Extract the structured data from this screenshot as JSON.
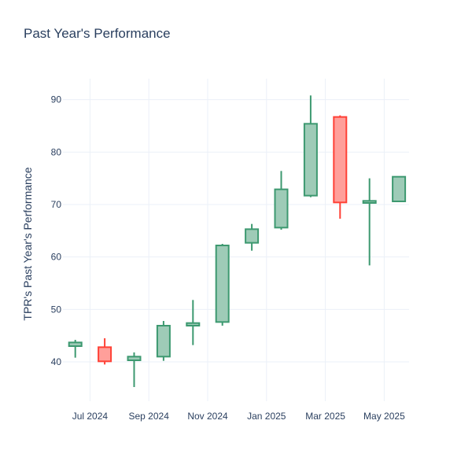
{
  "chart_data": {
    "type": "candlestick",
    "title": "Past Year's Performance",
    "xlabel": "",
    "ylabel": "TPR's Past Year's Performance",
    "x_ticks": [
      "Jul 2024",
      "Sep 2024",
      "Nov 2024",
      "Jan 2025",
      "Mar 2025",
      "May 2025"
    ],
    "y_ticks": [
      40,
      50,
      60,
      70,
      80,
      90
    ],
    "ylim": [
      32.5,
      94
    ],
    "grid": true,
    "increasing_color": "#3d9970",
    "decreasing_color": "#ff4136",
    "increasing_fill": "#9ecbb7",
    "decreasing_fill": "#ff9f9a",
    "candles": [
      {
        "period": "2024-06",
        "open": 43.0,
        "high": 44.2,
        "low": 40.8,
        "close": 43.7
      },
      {
        "period": "2024-07",
        "open": 42.8,
        "high": 44.5,
        "low": 39.5,
        "close": 40.1
      },
      {
        "period": "2024-08",
        "open": 40.3,
        "high": 41.8,
        "low": 35.2,
        "close": 41.0
      },
      {
        "period": "2024-09",
        "open": 41.0,
        "high": 47.8,
        "low": 40.2,
        "close": 46.9
      },
      {
        "period": "2024-10",
        "open": 46.9,
        "high": 51.8,
        "low": 43.2,
        "close": 47.4
      },
      {
        "period": "2024-11",
        "open": 47.6,
        "high": 62.5,
        "low": 46.9,
        "close": 62.2
      },
      {
        "period": "2024-12",
        "open": 62.7,
        "high": 66.3,
        "low": 61.2,
        "close": 65.3
      },
      {
        "period": "2025-01",
        "open": 65.6,
        "high": 76.4,
        "low": 65.2,
        "close": 72.9
      },
      {
        "period": "2025-02",
        "open": 71.7,
        "high": 90.8,
        "low": 71.4,
        "close": 85.4
      },
      {
        "period": "2025-03",
        "open": 86.7,
        "high": 87.0,
        "low": 67.3,
        "close": 70.4
      },
      {
        "period": "2025-04",
        "open": 70.3,
        "high": 75.0,
        "low": 58.4,
        "close": 70.7
      },
      {
        "period": "2025-05",
        "open": 70.6,
        "high": 75.4,
        "low": 70.5,
        "close": 75.3
      }
    ]
  }
}
